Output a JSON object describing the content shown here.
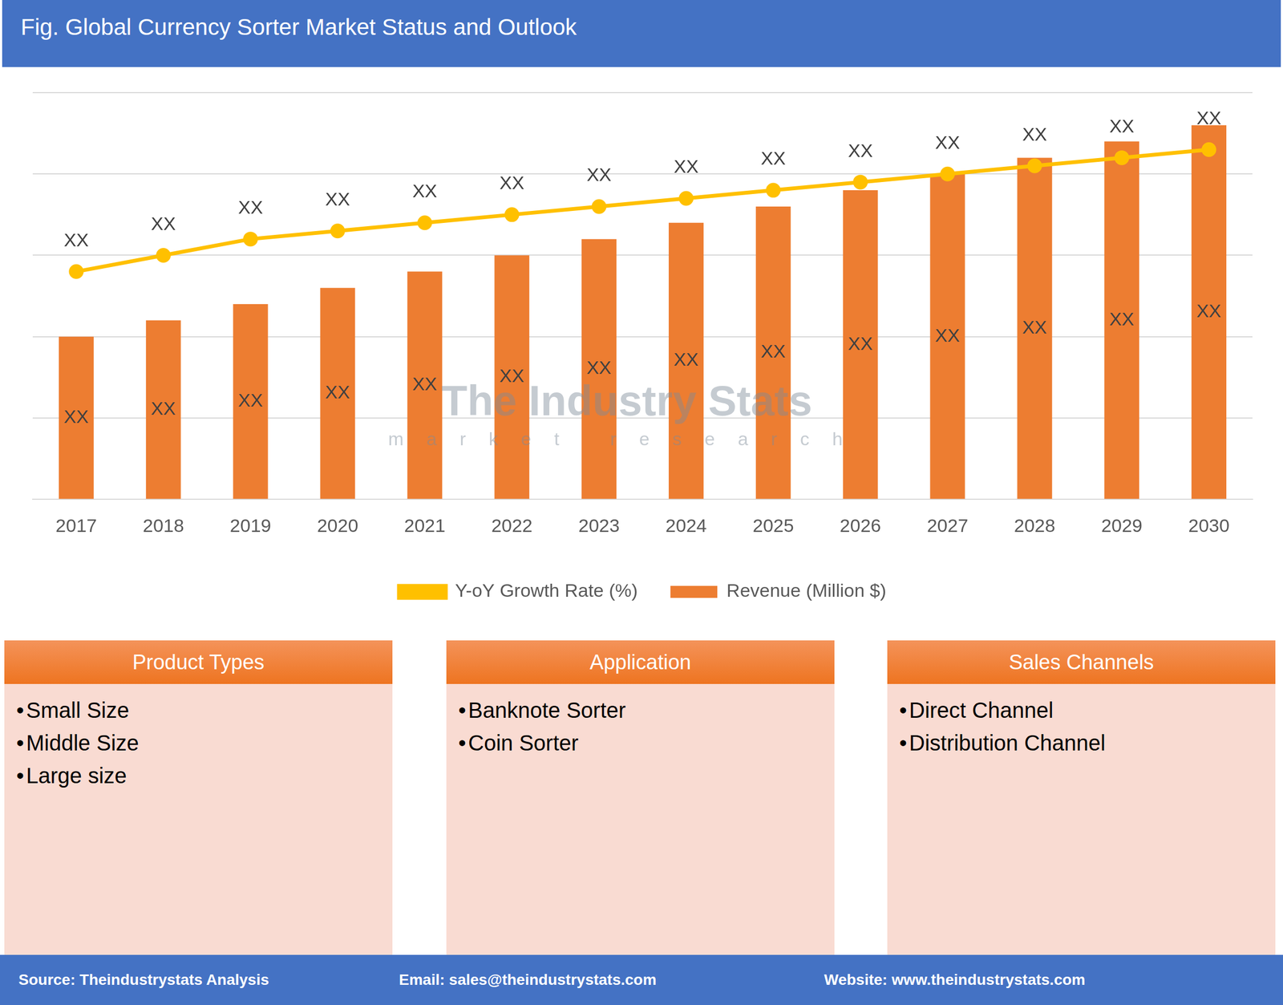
{
  "chart_data": {
    "type": "bar",
    "title": "Fig. Global Currency Sorter Market Status and Outlook",
    "categories": [
      "2017",
      "2018",
      "2019",
      "2020",
      "2021",
      "2022",
      "2023",
      "2024",
      "2025",
      "2026",
      "2027",
      "2028",
      "2029",
      "2030"
    ],
    "series": [
      {
        "name": "Revenue (Million $)",
        "type": "bar",
        "color": "#ED7D31",
        "values": [
          2.0,
          2.2,
          2.4,
          2.6,
          2.8,
          3.0,
          3.2,
          3.4,
          3.6,
          3.8,
          4.0,
          4.2,
          4.4,
          4.6
        ],
        "value_labels": [
          "XX",
          "XX",
          "XX",
          "XX",
          "XX",
          "XX",
          "XX",
          "XX",
          "XX",
          "XX",
          "XX",
          "XX",
          "XX",
          "XX"
        ]
      },
      {
        "name": "Y-oY Growth Rate (%)",
        "type": "line",
        "color": "#FFC000",
        "marker": "circle",
        "axis": "y2",
        "values": [
          2.8,
          3.0,
          3.2,
          3.3,
          3.4,
          3.5,
          3.6,
          3.7,
          3.8,
          3.9,
          4.0,
          4.1,
          4.2,
          4.3
        ],
        "value_labels": [
          "XX",
          "XX",
          "XX",
          "XX",
          "XX",
          "XX",
          "XX",
          "XX",
          "XX",
          "XX",
          "XX",
          "XX",
          "XX",
          "XX"
        ]
      }
    ],
    "ylim": [
      0,
      5
    ],
    "yticks": [
      0,
      1,
      2,
      3,
      4,
      5
    ],
    "y2lim": [
      0,
      5
    ],
    "y2ticks": [
      0,
      1,
      2,
      3,
      4,
      5
    ],
    "grid": true,
    "legend": "bottom",
    "data_labels": true,
    "tick_labels": "x"
  },
  "watermark": {
    "title": "The Industry Stats",
    "subtitle": "market research"
  },
  "panels": [
    {
      "title": "Product Types",
      "items": [
        "Small Size",
        "Middle Size",
        "Large size"
      ]
    },
    {
      "title": "Application",
      "items": [
        "Banknote Sorter",
        "Coin Sorter"
      ]
    },
    {
      "title": "Sales Channels",
      "items": [
        "Direct Channel",
        "Distribution Channel"
      ]
    }
  ],
  "footer": [
    "Source: Theindustrystats Analysis",
    "Email: sales@theindustrystats.com",
    "Website: www.theindustrystats.com"
  ]
}
